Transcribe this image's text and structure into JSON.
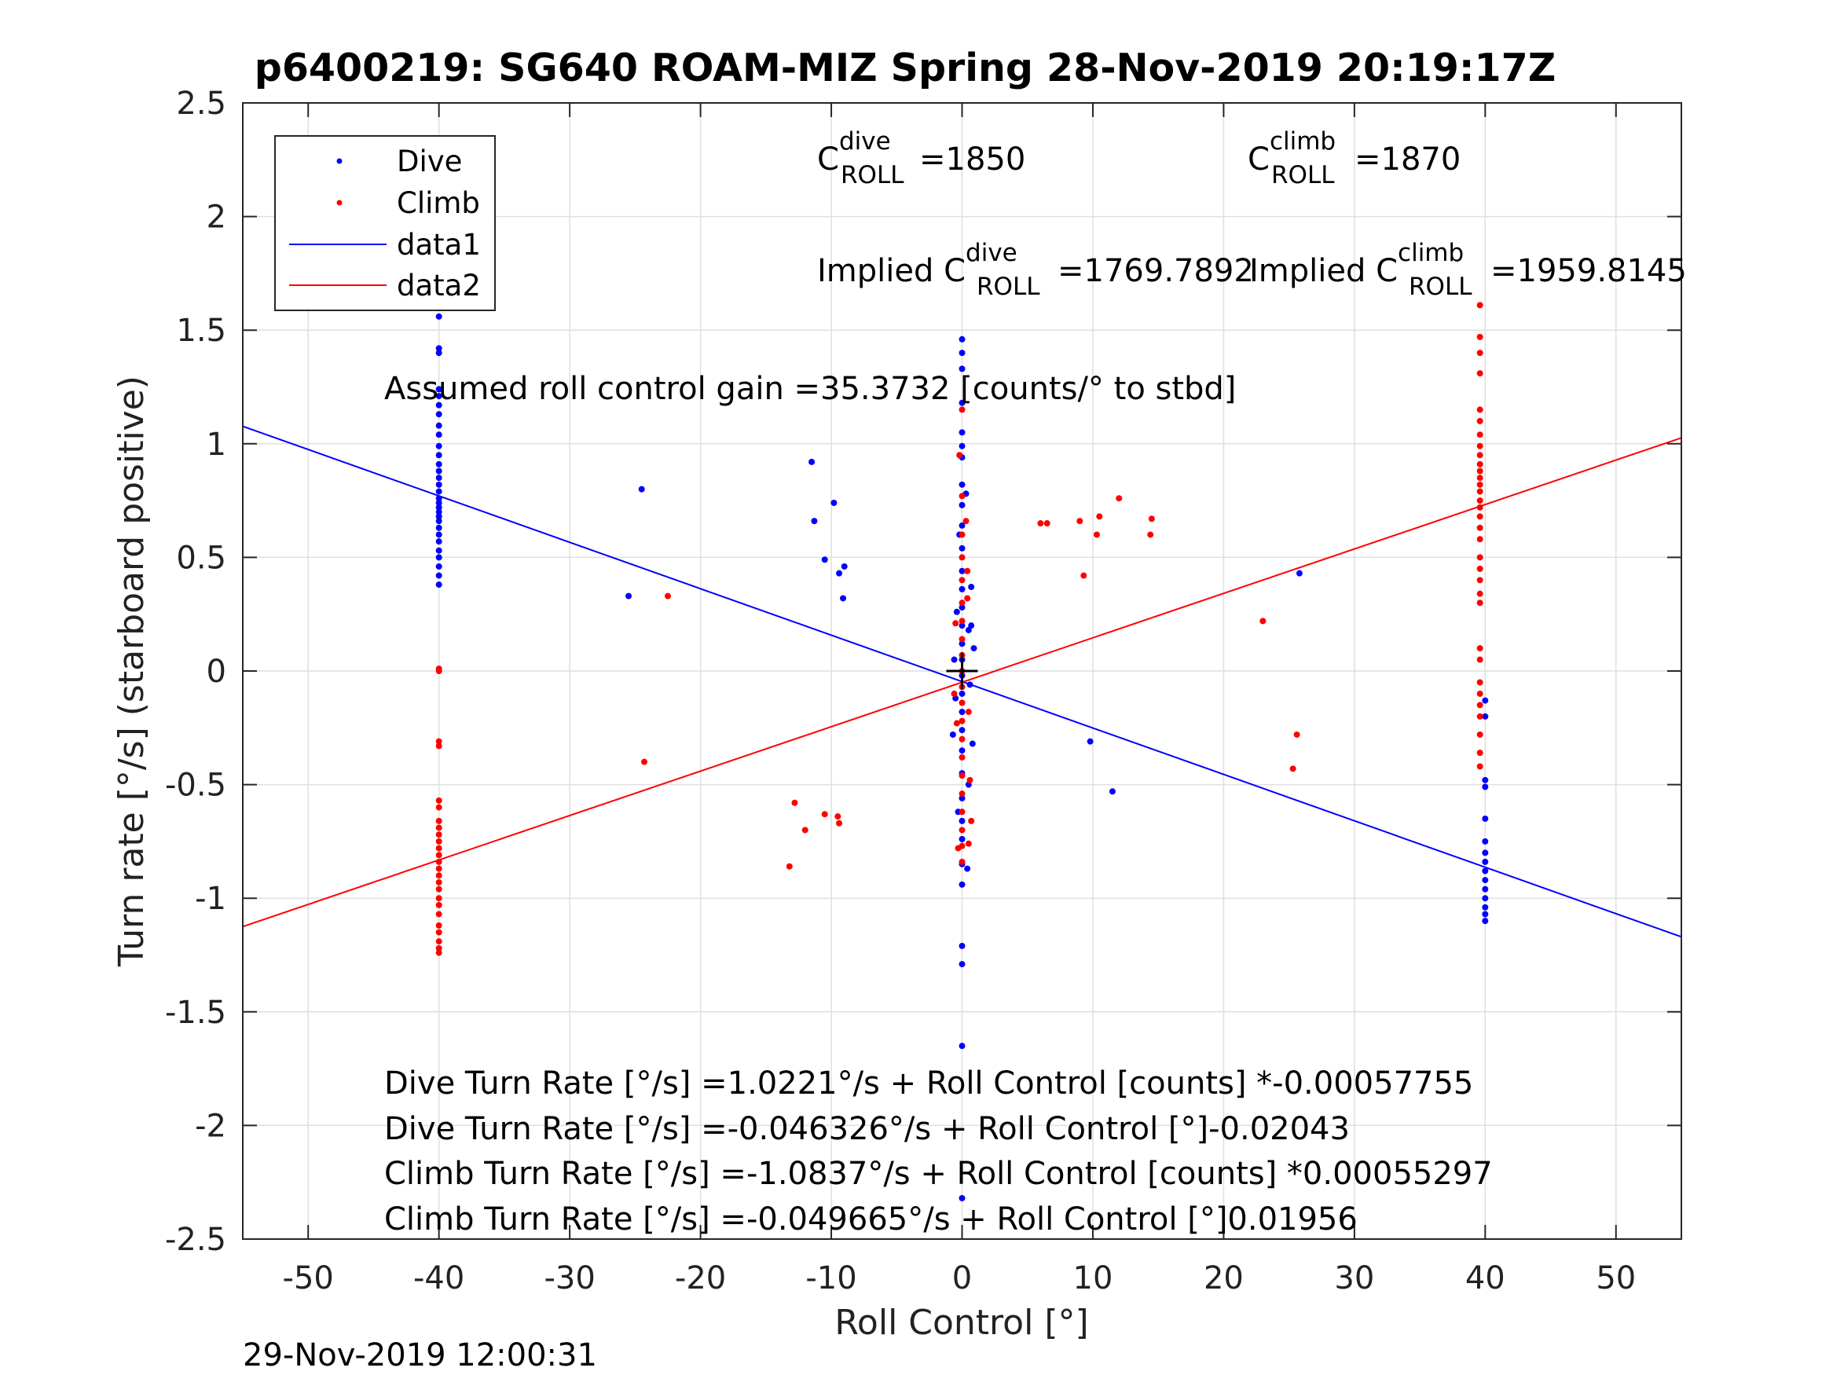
{
  "chart_data": {
    "type": "scatter",
    "title": "p6400219: SG640 ROAM-MIZ Spring 28-Nov-2019 20:19:17Z",
    "xlabel": "Roll Control [°]",
    "ylabel": "Turn rate [°/s] (starboard positive)",
    "xlim": [
      -55,
      55
    ],
    "ylim": [
      -2.5,
      2.5
    ],
    "xticks": [
      -50,
      -40,
      -30,
      -20,
      -10,
      0,
      10,
      20,
      30,
      40,
      50
    ],
    "yticks": [
      2.5,
      2,
      1.5,
      1,
      0.5,
      0,
      -0.5,
      -1,
      -1.5,
      -2,
      -2.5
    ],
    "xtick_labels": [
      "-50",
      "-40",
      "-30",
      "-20",
      "-10",
      "0",
      "10",
      "20",
      "30",
      "40",
      "50"
    ],
    "ytick_labels": [
      "2.5",
      "2",
      "1.5",
      "1",
      "0.5",
      "0",
      "-0.5",
      "-1",
      "-1.5",
      "-2",
      "-2.5"
    ],
    "grid": true,
    "legend_position": "top-left",
    "legend": [
      {
        "label": "Dive",
        "style": "dots",
        "color": "#0000ff"
      },
      {
        "label": "Climb",
        "style": "dots",
        "color": "#ff0000"
      },
      {
        "label": "data1",
        "style": "line",
        "color": "#0000ff"
      },
      {
        "label": "data2",
        "style": "line",
        "color": "#ff0000"
      }
    ],
    "series": [
      {
        "name": "Dive",
        "kind": "scatter",
        "color": "#0000ff",
        "points": [
          [
            -40,
            1.56
          ],
          [
            -40,
            1.42
          ],
          [
            -40,
            1.4
          ],
          [
            -40,
            1.24
          ],
          [
            -40,
            1.21
          ],
          [
            -40,
            1.17
          ],
          [
            -40,
            1.13
          ],
          [
            -40,
            1.08
          ],
          [
            -40,
            1.04
          ],
          [
            -40,
            0.99
          ],
          [
            -40,
            0.95
          ],
          [
            -40,
            0.91
          ],
          [
            -40,
            0.88
          ],
          [
            -40,
            0.85
          ],
          [
            -40,
            0.82
          ],
          [
            -40,
            0.79
          ],
          [
            -40,
            0.76
          ],
          [
            -40,
            0.74
          ],
          [
            -40,
            0.72
          ],
          [
            -40,
            0.7
          ],
          [
            -40,
            0.68
          ],
          [
            -40,
            0.66
          ],
          [
            -40,
            0.63
          ],
          [
            -40,
            0.6
          ],
          [
            -40,
            0.57
          ],
          [
            -40,
            0.53
          ],
          [
            -40,
            0.5
          ],
          [
            -40,
            0.46
          ],
          [
            -40,
            0.42
          ],
          [
            -40,
            0.38
          ],
          [
            -25.5,
            0.33
          ],
          [
            -24.5,
            0.8
          ],
          [
            -11.5,
            0.92
          ],
          [
            -11.3,
            0.66
          ],
          [
            -10.5,
            0.49
          ],
          [
            -9.8,
            0.74
          ],
          [
            -9.4,
            0.43
          ],
          [
            -9.0,
            0.46
          ],
          [
            -9.1,
            0.32
          ],
          [
            0,
            1.46
          ],
          [
            0,
            1.4
          ],
          [
            0,
            1.33
          ],
          [
            0,
            1.18
          ],
          [
            0,
            1.05
          ],
          [
            0,
            0.99
          ],
          [
            0,
            0.94
          ],
          [
            0,
            0.82
          ],
          [
            0,
            0.73
          ],
          [
            0,
            0.64
          ],
          [
            0,
            0.54
          ],
          [
            0,
            0.44
          ],
          [
            0,
            0.36
          ],
          [
            0,
            0.28
          ],
          [
            0,
            0.2
          ],
          [
            0,
            0.12
          ],
          [
            0,
            0.05
          ],
          [
            0,
            -0.02
          ],
          [
            0,
            -0.1
          ],
          [
            0,
            -0.18
          ],
          [
            0,
            -0.26
          ],
          [
            0,
            -0.35
          ],
          [
            0,
            -0.45
          ],
          [
            0,
            -0.56
          ],
          [
            0,
            -0.66
          ],
          [
            0,
            -0.74
          ],
          [
            0,
            -0.85
          ],
          [
            0,
            -0.94
          ],
          [
            0,
            -1.21
          ],
          [
            0,
            -1.29
          ],
          [
            0,
            -1.65
          ],
          [
            0,
            -2.32
          ],
          [
            -0.6,
            0.05
          ],
          [
            -0.5,
            -0.12
          ],
          [
            -0.7,
            -0.28
          ],
          [
            -0.4,
            0.26
          ],
          [
            0.5,
            0.18
          ],
          [
            0.6,
            -0.06
          ],
          [
            0.7,
            0.37
          ],
          [
            0.8,
            -0.32
          ],
          [
            0.9,
            0.1
          ],
          [
            0.5,
            -0.5
          ],
          [
            0.3,
            0.78
          ],
          [
            -0.3,
            -0.62
          ],
          [
            0.4,
            -0.87
          ],
          [
            0.7,
            0.2
          ],
          [
            -0.2,
            0.6
          ],
          [
            9.8,
            -0.31
          ],
          [
            11.5,
            -0.53
          ],
          [
            25.8,
            0.43
          ],
          [
            40,
            -0.13
          ],
          [
            40,
            -0.2
          ],
          [
            40,
            -0.48
          ],
          [
            40,
            -0.51
          ],
          [
            40,
            -0.65
          ],
          [
            40,
            -0.75
          ],
          [
            40,
            -0.8
          ],
          [
            40,
            -0.84
          ],
          [
            40,
            -0.88
          ],
          [
            40,
            -0.92
          ],
          [
            40,
            -0.96
          ],
          [
            40,
            -1.0
          ],
          [
            40,
            -1.04
          ],
          [
            40,
            -1.07
          ],
          [
            40,
            -1.1
          ]
        ]
      },
      {
        "name": "Climb",
        "kind": "scatter",
        "color": "#ff0000",
        "points": [
          [
            -40,
            0.01
          ],
          [
            -40,
            0.0
          ],
          [
            -40,
            -0.31
          ],
          [
            -40,
            -0.33
          ],
          [
            -40,
            -0.57
          ],
          [
            -40,
            -0.6
          ],
          [
            -40,
            -0.66
          ],
          [
            -40,
            -0.69
          ],
          [
            -40,
            -0.72
          ],
          [
            -40,
            -0.75
          ],
          [
            -40,
            -0.78
          ],
          [
            -40,
            -0.81
          ],
          [
            -40,
            -0.84
          ],
          [
            -40,
            -0.87
          ],
          [
            -40,
            -0.9
          ],
          [
            -40,
            -0.93
          ],
          [
            -40,
            -0.96
          ],
          [
            -40,
            -1.0
          ],
          [
            -40,
            -1.03
          ],
          [
            -40,
            -1.07
          ],
          [
            -40,
            -1.12
          ],
          [
            -40,
            -1.15
          ],
          [
            -40,
            -1.19
          ],
          [
            -40,
            -1.22
          ],
          [
            -40,
            -1.24
          ],
          [
            -22.5,
            0.33
          ],
          [
            -24.3,
            -0.4
          ],
          [
            -13.2,
            -0.86
          ],
          [
            -12.8,
            -0.58
          ],
          [
            -12.0,
            -0.7
          ],
          [
            -10.5,
            -0.63
          ],
          [
            -9.5,
            -0.64
          ],
          [
            -9.4,
            -0.67
          ],
          [
            0,
            1.15
          ],
          [
            0,
            0.77
          ],
          [
            0,
            0.6
          ],
          [
            0,
            0.5
          ],
          [
            0,
            0.4
          ],
          [
            0,
            0.3
          ],
          [
            0,
            0.22
          ],
          [
            0,
            0.14
          ],
          [
            0,
            0.07
          ],
          [
            0,
            0.0
          ],
          [
            0,
            -0.07
          ],
          [
            0,
            -0.14
          ],
          [
            0,
            -0.22
          ],
          [
            0,
            -0.3
          ],
          [
            0,
            -0.38
          ],
          [
            0,
            -0.46
          ],
          [
            0,
            -0.54
          ],
          [
            0,
            -0.62
          ],
          [
            0,
            -0.7
          ],
          [
            0,
            -0.77
          ],
          [
            0,
            -0.84
          ],
          [
            -0.5,
            0.21
          ],
          [
            -0.6,
            -0.1
          ],
          [
            -0.4,
            -0.23
          ],
          [
            0.4,
            0.32
          ],
          [
            0.5,
            -0.18
          ],
          [
            0.6,
            -0.48
          ],
          [
            0.3,
            0.66
          ],
          [
            0.7,
            -0.66
          ],
          [
            -0.3,
            -0.78
          ],
          [
            0.5,
            -0.76
          ],
          [
            -0.2,
            0.95
          ],
          [
            0.4,
            0.44
          ],
          [
            6.0,
            0.65
          ],
          [
            6.5,
            0.65
          ],
          [
            9.0,
            0.66
          ],
          [
            10.3,
            0.6
          ],
          [
            10.5,
            0.68
          ],
          [
            12.0,
            0.76
          ],
          [
            14.4,
            0.6
          ],
          [
            14.5,
            0.67
          ],
          [
            9.3,
            0.42
          ],
          [
            23.0,
            0.22
          ],
          [
            25.6,
            -0.28
          ],
          [
            25.3,
            -0.43
          ],
          [
            39.6,
            1.61
          ],
          [
            39.6,
            1.47
          ],
          [
            39.6,
            1.4
          ],
          [
            39.6,
            1.31
          ],
          [
            39.6,
            1.15
          ],
          [
            39.6,
            1.1
          ],
          [
            39.6,
            1.04
          ],
          [
            39.6,
            0.99
          ],
          [
            39.6,
            0.95
          ],
          [
            39.6,
            0.91
          ],
          [
            39.6,
            0.88
          ],
          [
            39.6,
            0.85
          ],
          [
            39.6,
            0.82
          ],
          [
            39.6,
            0.79
          ],
          [
            39.6,
            0.75
          ],
          [
            39.6,
            0.72
          ],
          [
            39.6,
            0.68
          ],
          [
            39.6,
            0.63
          ],
          [
            39.6,
            0.58
          ],
          [
            39.6,
            0.5
          ],
          [
            39.6,
            0.45
          ],
          [
            39.6,
            0.4
          ],
          [
            39.6,
            0.34
          ],
          [
            39.6,
            0.3
          ],
          [
            39.6,
            0.1
          ],
          [
            39.6,
            0.05
          ],
          [
            39.6,
            -0.05
          ],
          [
            39.6,
            -0.1
          ],
          [
            39.6,
            -0.15
          ],
          [
            39.6,
            -0.2
          ],
          [
            39.6,
            -0.28
          ],
          [
            39.6,
            -0.36
          ],
          [
            39.6,
            -0.42
          ]
        ]
      },
      {
        "name": "data1",
        "kind": "line",
        "color": "#0000ff",
        "points": [
          [
            -55,
            1.077
          ],
          [
            55,
            -1.17
          ]
        ]
      },
      {
        "name": "data2",
        "kind": "line",
        "color": "#ff0000",
        "points": [
          [
            -55,
            -1.125
          ],
          [
            55,
            1.026
          ]
        ]
      }
    ],
    "annotations": {
      "c_dive_letter": "C",
      "c_dive_sup": "dive",
      "c_dive_sub": "ROLL",
      "c_dive_value": "=1850",
      "c_climb_letter": "C",
      "c_climb_sup": "climb",
      "c_climb_sub": "ROLL",
      "c_climb_value": "=1870",
      "implied_dive_prefix": "Implied C",
      "implied_dive_sup": "dive",
      "implied_dive_sub": "ROLL",
      "implied_dive_value": "=1769.7892",
      "implied_climb_prefix": "Implied C",
      "implied_climb_sup": "climb",
      "implied_climb_sub": "ROLL",
      "implied_climb_value": "=1959.8145",
      "gain": "Assumed roll control gain =35.3732 [counts/° to stbd]",
      "fit_lines": [
        "Dive Turn Rate [°/s] =1.0221°/s + Roll Control [counts] *-0.00057755",
        "Dive Turn Rate [°/s] =-0.046326°/s + Roll Control [°]-0.02043",
        "Climb Turn Rate [°/s] =-1.0837°/s + Roll Control [counts] *0.00055297",
        "Climb Turn Rate [°/s] =-0.049665°/s + Roll Control [°]0.01956"
      ]
    }
  },
  "footer": {
    "timestamp": "29-Nov-2019 12:00:31"
  }
}
